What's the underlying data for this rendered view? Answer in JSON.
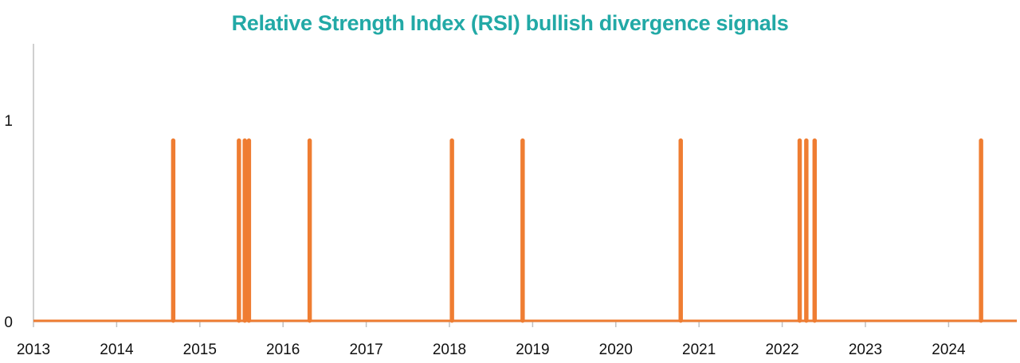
{
  "colors": {
    "title": "#22a9a6",
    "series": "#ef7d32",
    "axis": "#c0c0c0"
  },
  "chart_data": {
    "type": "line",
    "title": "Relative Strength Index (RSI) bullish divergence signals",
    "xlabel": "",
    "ylabel": "",
    "x_ticks": [
      "2013",
      "2014",
      "2015",
      "2016",
      "2017",
      "2018",
      "2019",
      "2020",
      "2021",
      "2022",
      "2023",
      "2024"
    ],
    "y_ticks": [
      "0",
      "1"
    ],
    "xlim": [
      2013.0,
      2024.82
    ],
    "ylim": [
      0,
      1.38
    ],
    "grid": false,
    "legend": "none",
    "signal_value": 0.9,
    "signals": [
      2014.68,
      2015.47,
      2015.54,
      2015.59,
      2016.32,
      2018.03,
      2018.88,
      2020.78,
      2022.21,
      2022.29,
      2022.39,
      2024.39
    ]
  }
}
